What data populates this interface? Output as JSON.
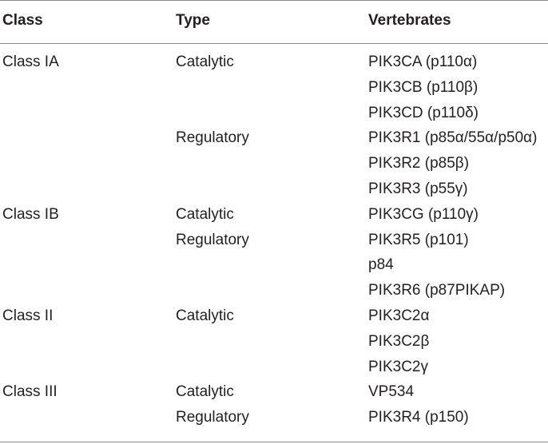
{
  "headers": {
    "class": "Class",
    "type": "Type",
    "vertebrates": "Vertebrates"
  },
  "rows": [
    {
      "class": "Class IA",
      "type": "Catalytic",
      "vertebrates": "PIK3CA (p110α)"
    },
    {
      "class": "",
      "type": "",
      "vertebrates": "PIK3CB (p110β)"
    },
    {
      "class": "",
      "type": "",
      "vertebrates": "PIK3CD (p110δ)"
    },
    {
      "class": "",
      "type": "Regulatory",
      "vertebrates": "PIK3R1 (p85α/55α/p50α)"
    },
    {
      "class": "",
      "type": "",
      "vertebrates": "PIK3R2 (p85β)"
    },
    {
      "class": "",
      "type": "",
      "vertebrates": "PIK3R3 (p55γ)"
    },
    {
      "class": "Class IB",
      "type": "Catalytic",
      "vertebrates": "PIK3CG (p110γ)"
    },
    {
      "class": "",
      "type": "Regulatory",
      "vertebrates": "PIK3R5 (p101)"
    },
    {
      "class": "",
      "type": "",
      "vertebrates": "p84"
    },
    {
      "class": "",
      "type": "",
      "vertebrates": "PIK3R6 (p87PIKAP)"
    },
    {
      "class": "Class II",
      "type": "Catalytic",
      "vertebrates": "PIK3C2α"
    },
    {
      "class": "",
      "type": "",
      "vertebrates": "PIK3C2β"
    },
    {
      "class": "",
      "type": "",
      "vertebrates": "PIK3C2γ"
    },
    {
      "class": "Class III",
      "type": "Catalytic",
      "vertebrates": "VP534"
    },
    {
      "class": "",
      "type": "Regulatory",
      "vertebrates": "PIK3R4 (p150)"
    }
  ]
}
